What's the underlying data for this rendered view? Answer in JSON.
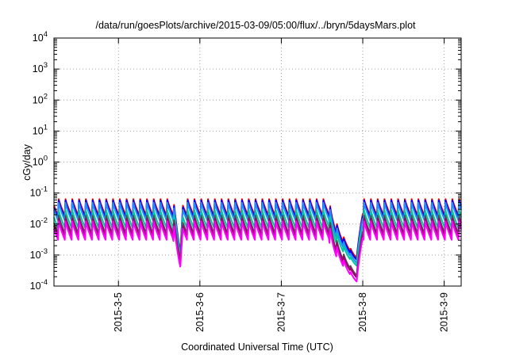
{
  "chart_data": {
    "type": "line",
    "title": "/data/run/goesPlots/archive/2015-03-09/05:00/flux/../bryn/5daysMars.plot",
    "xlabel": "Coordinated Universal Time (UTC)",
    "ylabel": "cGy/day",
    "y_scale": "log",
    "ylim": [
      0.0001,
      10000
    ],
    "y_ticks": [
      {
        "value": 0.0001,
        "base": "10",
        "exp": "-4"
      },
      {
        "value": 0.001,
        "base": "10",
        "exp": "-3"
      },
      {
        "value": 0.01,
        "base": "10",
        "exp": "-2"
      },
      {
        "value": 0.1,
        "base": "10",
        "exp": "-1"
      },
      {
        "value": 1,
        "base": "10",
        "exp": "0"
      },
      {
        "value": 10,
        "base": "10",
        "exp": "1"
      },
      {
        "value": 100,
        "base": "10",
        "exp": "2"
      },
      {
        "value": 1000,
        "base": "10",
        "exp": "3"
      },
      {
        "value": 10000,
        "base": "10",
        "exp": "4"
      }
    ],
    "xlim": [
      "2015-03-04 05:00",
      "2015-03-09 05:00"
    ],
    "x_ticks": [
      {
        "value": "2015-03-05 00:00",
        "label": "2015-3-5"
      },
      {
        "value": "2015-03-06 00:00",
        "label": "2015-3-6"
      },
      {
        "value": "2015-03-07 00:00",
        "label": "2015-3-7"
      },
      {
        "value": "2015-03-08 00:00",
        "label": "2015-3-8"
      },
      {
        "value": "2015-03-09 00:00",
        "label": "2015-3-9"
      }
    ],
    "grid": true,
    "pattern": "sawtooth, ~12 peaks per day; peak then decay",
    "events": [
      {
        "start": "2015-03-05 16:00",
        "end": "2015-03-05 19:00",
        "description": "dip"
      },
      {
        "start": "2015-03-07 14:00",
        "end": "2015-03-08 00:00",
        "description": "deep dip"
      }
    ],
    "series": [
      {
        "color": "#ff0000",
        "peak": 0.068,
        "trough": 0.019,
        "dip1_min": 0.0011,
        "dip2_min": 0.0008
      },
      {
        "color": "#0000ff",
        "peak": 0.062,
        "trough": 0.016,
        "dip1_min": 0.001,
        "dip2_min": 0.0007
      },
      {
        "color": "#1e90ff",
        "peak": 0.052,
        "trough": 0.013,
        "dip1_min": 0.0009,
        "dip2_min": 0.00055
      },
      {
        "color": "#00c8a0",
        "peak": 0.03,
        "trough": 0.0075,
        "dip1_min": 0.0008,
        "dip2_min": 0.00045
      },
      {
        "color": "#505050",
        "peak": 0.02,
        "trough": 0.005,
        "dip1_min": 0.0007,
        "dip2_min": 0.00022
      },
      {
        "color": "#a0006e",
        "peak": 0.016,
        "trough": 0.004,
        "dip1_min": 0.0006,
        "dip2_min": 0.00019
      },
      {
        "color": "#ff00ff",
        "peak": 0.013,
        "trough": 0.0031,
        "dip1_min": 0.0004,
        "dip2_min": 0.00014
      }
    ]
  }
}
